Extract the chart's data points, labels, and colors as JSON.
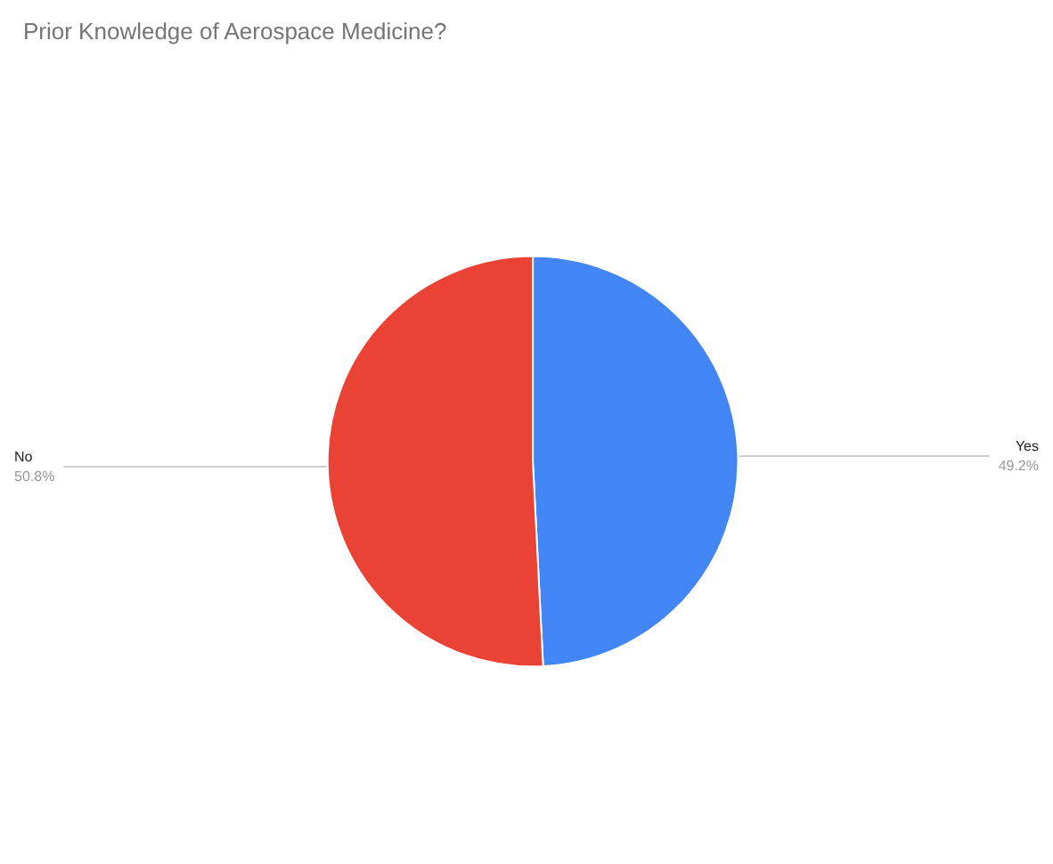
{
  "chart_data": {
    "type": "pie",
    "title": "Prior Knowledge of Aerospace Medicine?",
    "categories": [
      "Yes",
      "No"
    ],
    "values": [
      49.2,
      50.8
    ],
    "value_labels": [
      "49.2%",
      "50.8%"
    ],
    "colors": [
      "#4285f4",
      "#ea4335"
    ],
    "legend": false
  }
}
